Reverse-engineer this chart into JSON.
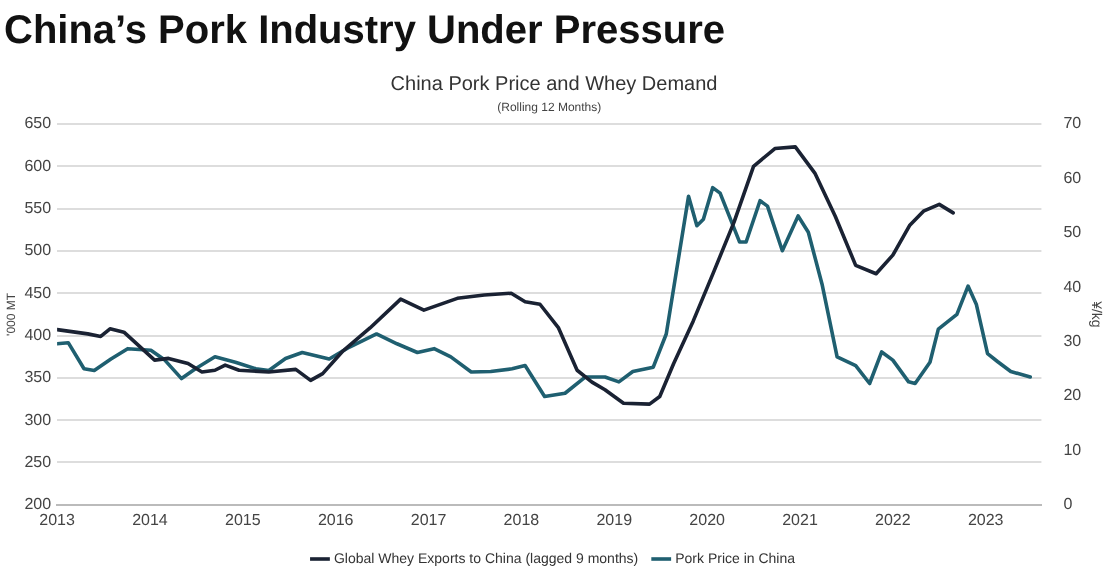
{
  "chart_data": {
    "type": "line",
    "title": "China’s Pork Industry Under Pressure",
    "subtitle": "China Pork Price and Whey Demand",
    "annotations": [
      "(Rolling 12 Months)"
    ],
    "ylabel": "'000 MT",
    "y2label": "¥/kg",
    "series": [
      {
        "name": "Global Whey Exports to China (lagged 9 months)",
        "color": "#1a2233",
        "x": [
          2013.0,
          2013.33,
          2013.47,
          2013.57,
          2013.72,
          2014.05,
          2014.2,
          2014.41,
          2014.56,
          2014.7,
          2014.81,
          2014.96,
          2015.28,
          2015.57,
          2015.73,
          2015.86,
          2016.08,
          2016.37,
          2016.7,
          2016.95,
          2017.31,
          2017.6,
          2017.89,
          2018.04,
          2018.2,
          2018.4,
          2018.6,
          2018.76,
          2018.9,
          2019.1,
          2019.38,
          2019.49,
          2019.64,
          2019.85,
          2020.07,
          2020.29,
          2020.5,
          2020.73,
          2020.95,
          2021.16,
          2021.38,
          2021.6,
          2021.82,
          2022.0,
          2022.18,
          2022.33,
          2022.5,
          2022.65
        ],
        "values": [
          407,
          402,
          399,
          408,
          404,
          371,
          373,
          367,
          357,
          359,
          365,
          359,
          357,
          360,
          347,
          355,
          382,
          409,
          443,
          430,
          444,
          448,
          450,
          440,
          437,
          409,
          359,
          345,
          336,
          320,
          319,
          328,
          367,
          417,
          475,
          534,
          600,
          621,
          623,
          592,
          541,
          483,
          473,
          495,
          530,
          547,
          555,
          545
        ]
      },
      {
        "name": "Pork Price in China",
        "color": "#1f5f70",
        "axis": "y2",
        "x": [
          2013.0,
          2013.12,
          2013.29,
          2013.4,
          2013.58,
          2013.76,
          2014.01,
          2014.16,
          2014.34,
          2014.49,
          2014.7,
          2014.92,
          2015.14,
          2015.28,
          2015.46,
          2015.64,
          2015.93,
          2016.15,
          2016.44,
          2016.66,
          2016.88,
          2017.06,
          2017.24,
          2017.46,
          2017.67,
          2017.9,
          2018.04,
          2018.25,
          2018.47,
          2018.69,
          2018.9,
          2019.05,
          2019.2,
          2019.42,
          2019.56,
          2019.8,
          2019.89,
          2019.96,
          2020.06,
          2020.14,
          2020.35,
          2020.42,
          2020.57,
          2020.65,
          2020.81,
          2020.98,
          2021.09,
          2021.24,
          2021.4,
          2021.6,
          2021.75,
          2021.88,
          2022.0,
          2022.17,
          2022.24,
          2022.4,
          2022.49,
          2022.69,
          2022.81,
          2022.9,
          2023.02,
          2023.13,
          2023.27,
          2023.48
        ],
        "values": [
          29.6,
          29.8,
          25.0,
          24.7,
          26.8,
          28.7,
          28.4,
          26.6,
          23.2,
          25.0,
          27.2,
          26.2,
          25.0,
          24.7,
          26.9,
          28.0,
          26.8,
          29.0,
          31.4,
          29.6,
          28.0,
          28.7,
          27.2,
          24.4,
          24.5,
          25.0,
          25.6,
          19.9,
          20.5,
          23.5,
          23.5,
          22.6,
          24.5,
          25.3,
          31.4,
          56.7,
          51.3,
          52.5,
          58.3,
          57.3,
          48.3,
          48.3,
          55.9,
          54.9,
          46.7,
          53.1,
          50.1,
          40.4,
          27.2,
          25.6,
          22.3,
          28.1,
          26.6,
          22.6,
          22.3,
          26.2,
          32.3,
          35.0,
          40.2,
          36.8,
          27.8,
          26.3,
          24.5,
          23.5
        ]
      }
    ],
    "xlim": [
      2013,
      2023.6
    ],
    "xticks": [
      2013,
      2014,
      2015,
      2016,
      2017,
      2018,
      2019,
      2020,
      2021,
      2022,
      2023
    ],
    "ylim": [
      200,
      650
    ],
    "yticks": [
      200,
      250,
      300,
      350,
      400,
      450,
      500,
      550,
      600,
      650
    ],
    "y2lim": [
      0,
      70
    ],
    "y2ticks": [
      0,
      10,
      20,
      30,
      40,
      50,
      60,
      70
    ],
    "grid": "y",
    "legend": "bottom",
    "marker": "none",
    "line_style": "solid"
  }
}
